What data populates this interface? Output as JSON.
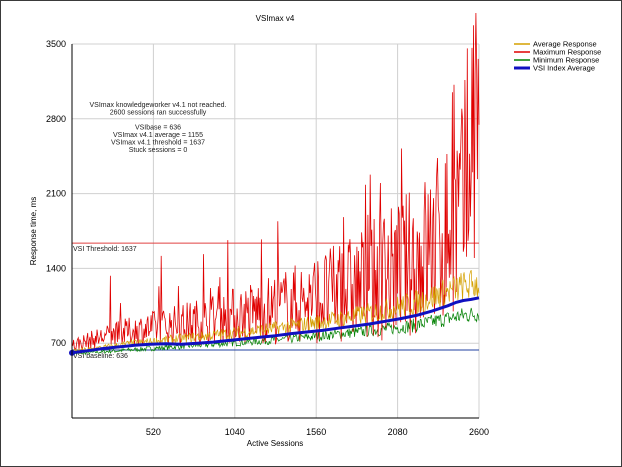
{
  "chart_data": {
    "type": "line",
    "title": "VSImax v4",
    "xlabel": "Active Sessions",
    "ylabel": "Response time, ms",
    "xlim": [
      0,
      2600
    ],
    "ylim": [
      0,
      3500
    ],
    "x_ticks": [
      "520",
      "1040",
      "1560",
      "2080",
      "2600"
    ],
    "y_ticks": [
      "700",
      "1400",
      "2100",
      "2800",
      "3500"
    ],
    "grid": true,
    "legend_position": "top-right",
    "series": [
      {
        "name": "Average Response",
        "color": "#d4a000",
        "x": [
          0,
          200,
          400,
          600,
          800,
          1000,
          1200,
          1400,
          1600,
          1800,
          2000,
          2200,
          2300,
          2400,
          2500,
          2600
        ],
        "values": [
          620,
          660,
          700,
          730,
          760,
          790,
          820,
          860,
          900,
          950,
          1010,
          1080,
          1130,
          1180,
          1230,
          1260
        ]
      },
      {
        "name": "Maximum Response",
        "color": "#e00000",
        "x": [
          0,
          200,
          400,
          600,
          800,
          1000,
          1200,
          1400,
          1600,
          1800,
          2000,
          2200,
          2300,
          2400,
          2500,
          2600
        ],
        "values": [
          680,
          760,
          820,
          860,
          900,
          950,
          1000,
          1060,
          1130,
          1220,
          1330,
          1480,
          1600,
          1750,
          1950,
          3100
        ]
      },
      {
        "name": "Minimum Response",
        "color": "#008000",
        "x": [
          0,
          200,
          400,
          600,
          800,
          1000,
          1200,
          1400,
          1600,
          1800,
          2000,
          2200,
          2300,
          2400,
          2500,
          2600
        ],
        "values": [
          600,
          620,
          640,
          660,
          680,
          700,
          720,
          740,
          770,
          800,
          830,
          870,
          900,
          930,
          960,
          980
        ]
      },
      {
        "name": "VSI Index Average",
        "color": "#1010c0",
        "x": [
          0,
          100,
          200,
          300,
          400,
          500,
          600,
          700,
          800,
          900,
          1000,
          1100,
          1200,
          1300,
          1400,
          1500,
          1600,
          1700,
          1800,
          1900,
          2000,
          2100,
          2200,
          2300,
          2400,
          2450,
          2500,
          2550,
          2600
        ],
        "values": [
          610,
          630,
          650,
          665,
          680,
          690,
          695,
          690,
          700,
          710,
          725,
          740,
          755,
          770,
          790,
          805,
          820,
          840,
          860,
          880,
          905,
          930,
          960,
          1000,
          1050,
          1080,
          1100,
          1110,
          1125
        ]
      }
    ],
    "reference_lines": [
      {
        "label": "VSI Threshold: 1637",
        "value": 1637,
        "color": "#e04040"
      },
      {
        "label": "VSI baseline: 636",
        "value": 636,
        "color": "#2040a0"
      }
    ],
    "annotation": [
      "VSImax knowledgeworker v4.1 not reached.",
      "2600 sessions ran successfully",
      "",
      "VSIbase = 636",
      "VSImax v4.1 average = 1155",
      "VSImax v4.1 threshold = 1637",
      "Stuck sessions = 0"
    ]
  }
}
